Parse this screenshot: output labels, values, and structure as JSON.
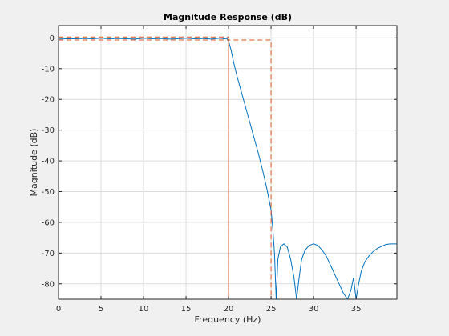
{
  "chart_data": {
    "type": "line",
    "title": "Magnitude Response (dB)",
    "xlabel": "Frequency (Hz)",
    "ylabel": "Magnitude (dB)",
    "xlim": [
      0,
      39.8
    ],
    "ylim": [
      -85,
      4
    ],
    "x_ticks": [
      0,
      5,
      10,
      15,
      20,
      25,
      30,
      35
    ],
    "y_ticks": [
      0,
      -10,
      -20,
      -30,
      -40,
      -50,
      -60,
      -70,
      -80
    ],
    "x_tick_labels": [
      "0",
      "5",
      "10",
      "15",
      "20",
      "25",
      "30",
      "35"
    ],
    "y_tick_labels": [
      "0",
      "-10",
      "-20",
      "-30",
      "-40",
      "-50",
      "-60",
      "-70",
      "-80"
    ],
    "grid": true,
    "colors": {
      "response": "#0072bd",
      "mask": "#d9531e",
      "grid": "#dcdcdc",
      "axes_bg": "#ffffff",
      "figure_bg": "#f0f0f0"
    },
    "series": [
      {
        "style": "solid",
        "x": [
          0,
          1,
          2,
          3,
          4,
          5,
          6,
          7,
          8,
          9,
          10,
          11,
          12,
          13,
          14,
          15,
          16,
          17,
          18,
          19,
          19.5,
          19.8,
          20,
          20.3,
          20.6,
          21,
          21.5,
          22,
          22.5,
          23,
          23.5,
          24,
          24.5,
          25,
          25.2,
          25.4,
          25.6,
          25.8,
          26.1,
          26.5,
          26.9,
          27.3,
          27.7,
          28.0,
          28.3,
          28.6,
          29.0,
          29.5,
          30.0,
          30.5,
          31.0,
          31.5,
          32.0,
          32.5,
          33.0,
          33.5,
          34.0,
          34.4,
          34.7,
          35.0,
          35.3,
          35.6,
          36.0,
          36.5,
          37.0,
          37.5,
          38.0,
          38.5,
          39.0,
          39.5,
          39.8
        ],
        "y": [
          -0.4,
          -0.3,
          -0.3,
          -0.2,
          -0.3,
          -0.1,
          -0.3,
          -0.2,
          -0.3,
          -0.4,
          -0.1,
          -0.3,
          -0.2,
          -0.4,
          -0.3,
          -0.1,
          -0.3,
          -0.2,
          -0.4,
          -0.1,
          -0.3,
          -0.2,
          -1.0,
          -4.0,
          -8.0,
          -12.5,
          -17.5,
          -22.5,
          -27.5,
          -32.5,
          -37.5,
          -43.0,
          -49.0,
          -56.0,
          -62.0,
          -70.0,
          -85.0,
          -72.0,
          -68.0,
          -67.0,
          -68.0,
          -72.0,
          -78.0,
          -85.0,
          -78.0,
          -72.0,
          -69.0,
          -67.5,
          -67.0,
          -67.5,
          -69.0,
          -71.0,
          -74.0,
          -77.0,
          -80.0,
          -83.0,
          -85.0,
          -82.0,
          -78.0,
          -85.0,
          -80.0,
          -76.0,
          -73.0,
          -71.0,
          -69.5,
          -68.5,
          -67.8,
          -67.2,
          -67.0,
          -67.0,
          -67.0
        ]
      },
      {
        "style": "dashed",
        "x": [
          0,
          20,
          20,
          20,
          25,
          25
        ],
        "y": [
          0.3,
          0.3,
          -85,
          -0.7,
          -0.7,
          -85
        ]
      },
      {
        "style": "dashed",
        "x": [
          0,
          20
        ],
        "y": [
          -0.7,
          -0.7
        ]
      }
    ]
  }
}
